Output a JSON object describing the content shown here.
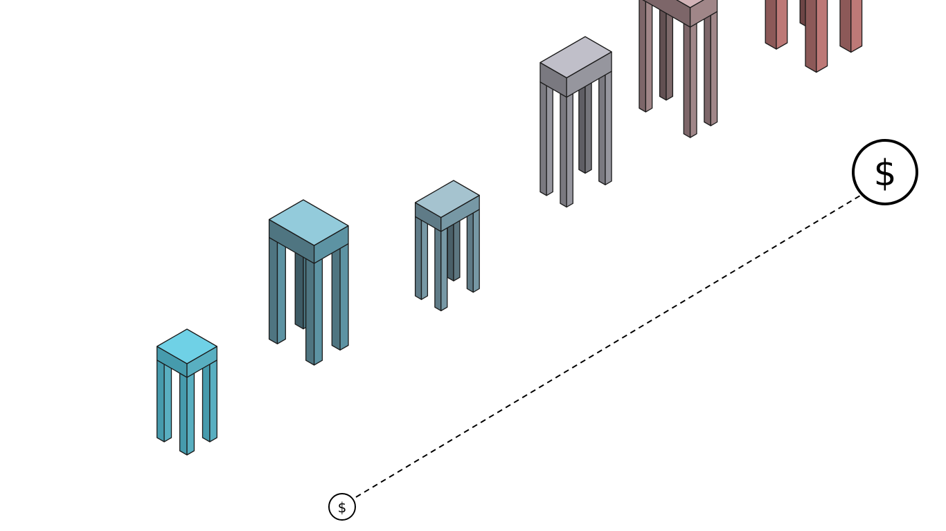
{
  "stools": [
    {
      "top": "#6fd1e6",
      "left": "#469bad",
      "right": "#59afc1"
    },
    {
      "top": "#93cbdb",
      "left": "#4f7581",
      "right": "#5d93a3"
    },
    {
      "top": "#a5c3cf",
      "left": "#5f7b87",
      "right": "#7798a5"
    },
    {
      "top": "#c0bfc9",
      "left": "#7a7980",
      "right": "#96969e"
    },
    {
      "top": "#d2b3b7",
      "left": "#7d6669",
      "right": "#a08688"
    },
    {
      "top": "#f3a4a2",
      "left": "#8c5958",
      "right": "#bd7977"
    }
  ],
  "cost_indicator": {
    "symbol": "$",
    "start_icon": "dollar-small-icon",
    "end_icon": "dollar-large-icon",
    "line_style": "dashed"
  }
}
